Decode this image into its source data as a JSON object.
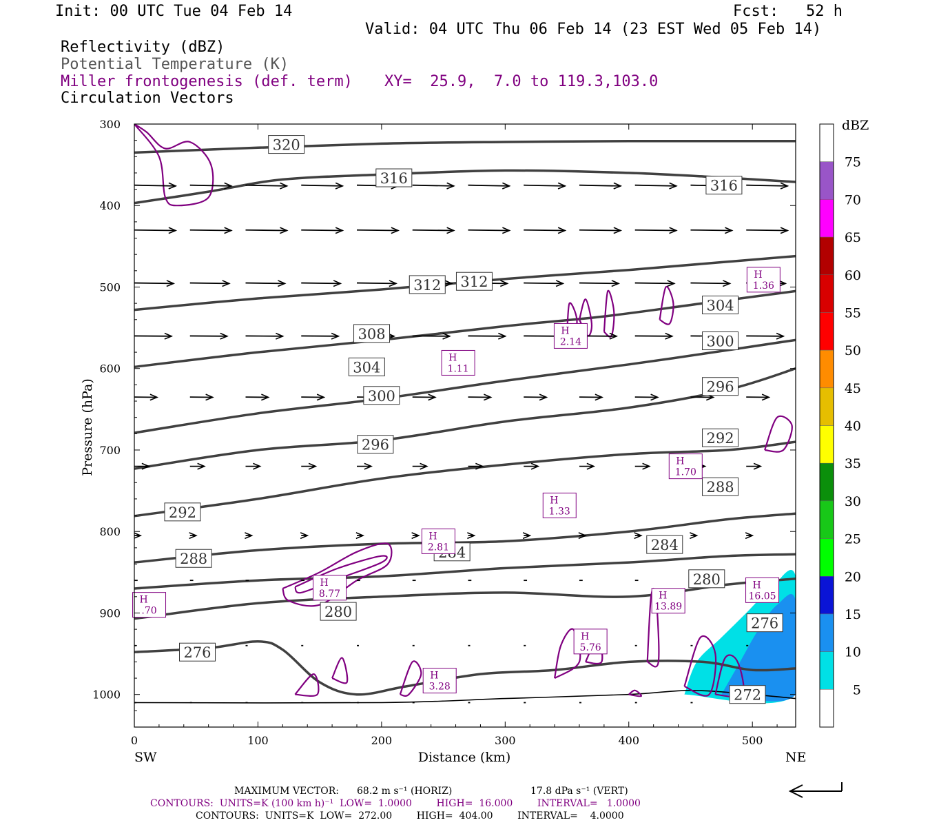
{
  "header": {
    "init": "Init: 00 UTC Tue 04 Feb 14",
    "fcst": "Fcst:   52 h",
    "valid": "Valid: 04 UTC Thu 06 Feb 14 (23 EST Wed 05 Feb 14)",
    "field1": "Reflectivity (dBZ)",
    "field2": "Potential Temperature (K)",
    "field3": "Miller frontogenesis (def. term)",
    "xy": "XY=  25.9,  7.0 to 119.3,103.0",
    "field4": "Circulation Vectors"
  },
  "footer": {
    "maxvec_label": "MAXIMUM VECTOR:",
    "maxvec_h": "68.2 m s⁻¹ (HORIZ)",
    "maxvec_v": "17.8 dPa s⁻¹ (VERT)",
    "contours1": "CONTOURS:  UNITS=K (100 km h)⁻¹  LOW=  1.0000        HIGH=  16.000        INTERVAL=   1.0000",
    "contours2": "CONTOURS:  UNITS=K  LOW=  272.00        HIGH=  404.00        INTERVAL=    4.0000"
  },
  "colors": {
    "theta": "#404040",
    "fronto": "#800080",
    "vector": "#000000",
    "refl_5": "#00e0e6",
    "refl_10": "#1a90f0"
  },
  "chart_data": {
    "type": "cross-section",
    "xlabel": "Distance (km)",
    "ylabel": "Pressure (hPa)",
    "xlim": [
      0,
      535
    ],
    "ylim": [
      1040,
      300
    ],
    "x_ticks": [
      0,
      100,
      200,
      300,
      400,
      500
    ],
    "y_ticks": [
      300,
      400,
      500,
      600,
      700,
      800,
      900,
      1000
    ],
    "x_end_labels": {
      "left": "SW",
      "right": "NE"
    },
    "colorbar": {
      "units": "dBZ",
      "levels": [
        5,
        10,
        15,
        20,
        25,
        30,
        35,
        40,
        45,
        50,
        55,
        60,
        65,
        70,
        75
      ],
      "colors": [
        "#ffffff",
        "#00e0e6",
        "#1a90f0",
        "#0a14d6",
        "#00ff00",
        "#18c818",
        "#0b8f0b",
        "#ffff00",
        "#e6be00",
        "#ff8c00",
        "#ff0000",
        "#d80000",
        "#b20000",
        "#ff00ff",
        "#9955c8",
        "#ffffff"
      ]
    },
    "theta_contours": [
      {
        "label": "320",
        "pts": [
          [
            0,
            335
          ],
          [
            100,
            329
          ],
          [
            200,
            324
          ],
          [
            300,
            322
          ],
          [
            400,
            321
          ],
          [
            535,
            321
          ]
        ]
      },
      {
        "label": "316",
        "pts": [
          [
            0,
            397
          ],
          [
            60,
            383
          ],
          [
            120,
            368
          ],
          [
            200,
            362
          ],
          [
            300,
            357
          ],
          [
            400,
            360
          ],
          [
            480,
            366
          ],
          [
            535,
            371
          ]
        ]
      },
      {
        "label": "316",
        "pts": [
          [
            0,
            397
          ]
        ]
      },
      {
        "label": "312",
        "pts": [
          [
            0,
            528
          ],
          [
            100,
            514
          ],
          [
            200,
            503
          ],
          [
            300,
            490
          ],
          [
            400,
            479
          ],
          [
            480,
            469
          ],
          [
            535,
            462
          ]
        ]
      },
      {
        "label": "304",
        "pts": [
          [
            0,
            598
          ],
          [
            100,
            580
          ],
          [
            200,
            565
          ],
          [
            300,
            548
          ],
          [
            380,
            536
          ],
          [
            460,
            520
          ],
          [
            535,
            505
          ]
        ]
      },
      {
        "label": "300",
        "pts": [
          [
            0,
            679
          ],
          [
            100,
            655
          ],
          [
            200,
            637
          ],
          [
            300,
            615
          ],
          [
            400,
            595
          ],
          [
            460,
            582
          ],
          [
            535,
            565
          ]
        ]
      },
      {
        "label": "296",
        "pts": [
          [
            0,
            723
          ],
          [
            100,
            700
          ],
          [
            200,
            688
          ],
          [
            300,
            665
          ],
          [
            400,
            648
          ],
          [
            480,
            626
          ],
          [
            535,
            600
          ]
        ]
      },
      {
        "label": "292",
        "pts": [
          [
            0,
            781
          ],
          [
            100,
            760
          ],
          [
            200,
            735
          ],
          [
            300,
            718
          ],
          [
            400,
            705
          ],
          [
            480,
            700
          ],
          [
            535,
            690
          ]
        ]
      },
      {
        "label": "288",
        "pts": [
          [
            0,
            838
          ],
          [
            100,
            823
          ],
          [
            200,
            815
          ],
          [
            300,
            812
          ],
          [
            400,
            800
          ],
          [
            480,
            785
          ],
          [
            535,
            778
          ]
        ]
      },
      {
        "label": "284",
        "pts": [
          [
            0,
            870
          ],
          [
            100,
            860
          ],
          [
            200,
            855
          ],
          [
            300,
            845
          ],
          [
            400,
            838
          ],
          [
            480,
            830
          ],
          [
            535,
            828
          ]
        ]
      },
      {
        "label": "280",
        "pts": [
          [
            0,
            907
          ],
          [
            100,
            888
          ],
          [
            200,
            880
          ],
          [
            300,
            875
          ],
          [
            400,
            880
          ],
          [
            480,
            865
          ],
          [
            535,
            858
          ]
        ]
      },
      {
        "label": "276",
        "pts": [
          [
            0,
            948
          ],
          [
            60,
            943
          ],
          [
            100,
            935
          ],
          [
            120,
            945
          ],
          [
            150,
            985
          ],
          [
            180,
            1000
          ],
          [
            220,
            990
          ],
          [
            280,
            975
          ],
          [
            340,
            970
          ],
          [
            400,
            960
          ],
          [
            460,
            960
          ],
          [
            500,
            970
          ],
          [
            535,
            968
          ]
        ]
      },
      {
        "label": "272",
        "pts": [
          [
            0,
            1010
          ],
          [
            200,
            1010
          ],
          [
            300,
            1005
          ],
          [
            400,
            1000
          ],
          [
            450,
            995
          ],
          [
            500,
            1000
          ],
          [
            535,
            1005
          ]
        ]
      }
    ],
    "theta_label_positions": [
      {
        "label": "320",
        "x": 123,
        "y": 325
      },
      {
        "label": "316",
        "x": 210,
        "y": 366
      },
      {
        "label": "316",
        "x": 477,
        "y": 375
      },
      {
        "label": "312",
        "x": 237,
        "y": 497
      },
      {
        "label": "312",
        "x": 275,
        "y": 493
      },
      {
        "label": "308",
        "x": 192,
        "y": 557
      },
      {
        "label": "304",
        "x": 188,
        "y": 598
      },
      {
        "label": "304",
        "x": 474,
        "y": 522
      },
      {
        "label": "300",
        "x": 200,
        "y": 633
      },
      {
        "label": "300",
        "x": 474,
        "y": 566
      },
      {
        "label": "296",
        "x": 195,
        "y": 693
      },
      {
        "label": "296",
        "x": 474,
        "y": 622
      },
      {
        "label": "292",
        "x": 39,
        "y": 776
      },
      {
        "label": "292",
        "x": 474,
        "y": 685
      },
      {
        "label": "288",
        "x": 474,
        "y": 745
      },
      {
        "label": "288",
        "x": 48,
        "y": 833
      },
      {
        "label": "284",
        "x": 257,
        "y": 825
      },
      {
        "label": "284",
        "x": 429,
        "y": 816
      },
      {
        "label": "280",
        "x": 165,
        "y": 898
      },
      {
        "label": "280",
        "x": 463,
        "y": 858
      },
      {
        "label": "276",
        "x": 51,
        "y": 948
      },
      {
        "label": "276",
        "x": 510,
        "y": 912
      },
      {
        "label": "272",
        "x": 496,
        "y": 1000
      }
    ],
    "fronto_maxima": [
      {
        "label": "H",
        "value": "1.36",
        "x": 509,
        "y": 491
      },
      {
        "label": "H",
        "value": "2.14",
        "x": 353,
        "y": 560
      },
      {
        "label": "H",
        "value": "1.11",
        "x": 262,
        "y": 593
      },
      {
        "label": "H",
        "value": "1.70",
        "x": 446,
        "y": 720
      },
      {
        "label": "H",
        "value": "1.33",
        "x": 344,
        "y": 768
      },
      {
        "label": "H",
        "value": "2.81",
        "x": 246,
        "y": 812
      },
      {
        "label": "H",
        "value": "8.77",
        "x": 158,
        "y": 869
      },
      {
        "label": "H",
        "value": ".70",
        "x": 12,
        "y": 890
      },
      {
        "label": "H",
        "value": "16.05",
        "x": 508,
        "y": 872
      },
      {
        "label": "H",
        "value": "13.89",
        "x": 432,
        "y": 885
      },
      {
        "label": "H",
        "value": "5.76",
        "x": 369,
        "y": 935
      },
      {
        "label": "H",
        "value": "3.28",
        "x": 247,
        "y": 983
      }
    ],
    "vector_rows": [
      {
        "p": 375,
        "u": 1.0,
        "w": 0.15
      },
      {
        "p": 430,
        "u": 1.0,
        "w": 0.1
      },
      {
        "p": 495,
        "u": 0.95,
        "w": 0.1
      },
      {
        "p": 560,
        "u": 0.9,
        "w": 0.05
      },
      {
        "p": 635,
        "u": 0.55,
        "w": 0.05
      },
      {
        "p": 720,
        "u": 0.35,
        "w": -0.05
      },
      {
        "p": 805,
        "u": 0.15,
        "w": 0.0
      },
      {
        "p": 860,
        "u": 0.08,
        "w": 0.0
      },
      {
        "p": 940,
        "u": 0.05,
        "w": 0.0
      },
      {
        "p": 1010,
        "u": 0.05,
        "w": 0.0
      }
    ]
  }
}
